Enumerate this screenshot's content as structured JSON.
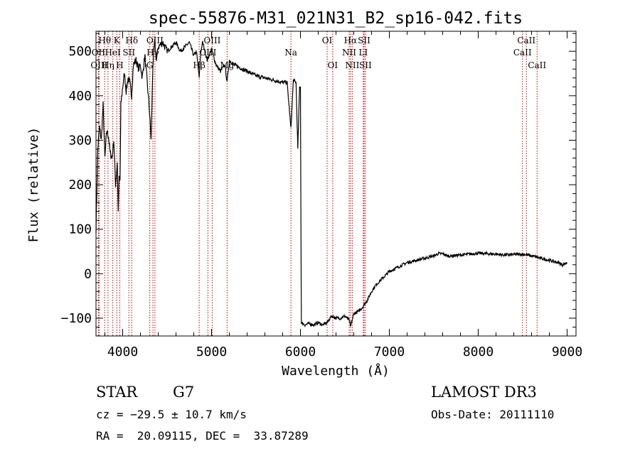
{
  "chart_data": {
    "type": "line",
    "title": "spec-55876-M31_021N31_B2_sp16-042.fits",
    "xlabel": "Wavelength (Å)",
    "ylabel": "Flux (relative)",
    "xlim": [
      3700,
      9100
    ],
    "ylim": [
      -140,
      545
    ],
    "xticks": [
      4000,
      5000,
      6000,
      7000,
      8000,
      9000
    ],
    "yticks": [
      -100,
      0,
      100,
      200,
      300,
      400,
      500
    ],
    "spectrum": {
      "x": [
        3700,
        3720,
        3740,
        3760,
        3780,
        3800,
        3820,
        3840,
        3860,
        3880,
        3900,
        3920,
        3940,
        3950,
        3960,
        3970,
        3980,
        4000,
        4020,
        4040,
        4060,
        4080,
        4100,
        4120,
        4150,
        4180,
        4200,
        4220,
        4250,
        4280,
        4300,
        4320,
        4340,
        4360,
        4380,
        4400,
        4450,
        4500,
        4550,
        4600,
        4650,
        4700,
        4750,
        4800,
        4830,
        4861,
        4880,
        4900,
        4950,
        5000,
        5050,
        5100,
        5150,
        5175,
        5200,
        5250,
        5300,
        5400,
        5500,
        5600,
        5700,
        5800,
        5850,
        5893,
        5920,
        5950,
        5970,
        5990,
        6000,
        6010,
        6050,
        6100,
        6150,
        6200,
        6250,
        6300,
        6350,
        6400,
        6450,
        6500,
        6550,
        6563,
        6600,
        6650,
        6700,
        6750,
        6800,
        6850,
        6900,
        6950,
        7000,
        7100,
        7200,
        7300,
        7400,
        7500,
        7550,
        7600,
        7650,
        7700,
        7800,
        7900,
        8000,
        8100,
        8200,
        8300,
        8400,
        8500,
        8600,
        8700,
        8800,
        8900,
        8950,
        9000
      ],
      "y": [
        100,
        280,
        330,
        300,
        380,
        260,
        320,
        310,
        270,
        260,
        300,
        200,
        250,
        140,
        220,
        210,
        380,
        420,
        450,
        410,
        440,
        430,
        400,
        470,
        480,
        460,
        470,
        440,
        490,
        420,
        370,
        300,
        470,
        520,
        480,
        510,
        520,
        500,
        510,
        520,
        500,
        510,
        520,
        490,
        500,
        440,
        500,
        520,
        480,
        505,
        470,
        455,
        470,
        430,
        480,
        470,
        465,
        455,
        445,
        440,
        435,
        430,
        430,
        325,
        435,
        430,
        280,
        420,
        420,
        -110,
        -115,
        -112,
        -115,
        -110,
        -115,
        -110,
        -95,
        -100,
        -100,
        -95,
        -105,
        -120,
        -90,
        -85,
        -75,
        -60,
        -40,
        -25,
        -15,
        -5,
        5,
        15,
        25,
        30,
        35,
        40,
        45,
        45,
        40,
        40,
        42,
        44,
        46,
        45,
        44,
        42,
        43,
        44,
        40,
        35,
        30,
        25,
        20,
        25
      ]
    },
    "lines": [
      {
        "label": "Hθ",
        "wl": 3798,
        "row": 0
      },
      {
        "label": "OII",
        "wl": 3727,
        "row": 1
      },
      {
        "label": "OIII",
        "wl": 3735,
        "row": 2
      },
      {
        "label": "K",
        "wl": 3934,
        "row": 0
      },
      {
        "label": "HeI",
        "wl": 3889,
        "row": 1
      },
      {
        "label": "SII",
        "wl": 4070,
        "row": 1
      },
      {
        "label": "Hη",
        "wl": 3835,
        "row": 2
      },
      {
        "label": "H",
        "wl": 3968,
        "row": 2
      },
      {
        "label": "Hδ",
        "wl": 4102,
        "row": 0
      },
      {
        "label": "OIII",
        "wl": 4363,
        "row": 0
      },
      {
        "label": "Hγ",
        "wl": 4340,
        "row": 1
      },
      {
        "label": "G",
        "wl": 4305,
        "row": 2
      },
      {
        "label": "OIII",
        "wl": 5007,
        "row": 0
      },
      {
        "label": "OIII",
        "wl": 4959,
        "row": 1
      },
      {
        "label": "Hβ",
        "wl": 4861,
        "row": 2
      },
      {
        "label": "Mg",
        "wl": 5175,
        "row": 2
      },
      {
        "label": "Na",
        "wl": 5893,
        "row": 1
      },
      {
        "label": "OI",
        "wl": 6300,
        "row": 0
      },
      {
        "label": "OI",
        "wl": 6363,
        "row": 2
      },
      {
        "label": "Hα",
        "wl": 6563,
        "row": 0
      },
      {
        "label": "NII",
        "wl": 6548,
        "row": 1
      },
      {
        "label": "NII",
        "wl": 6583,
        "row": 2
      },
      {
        "label": "SII",
        "wl": 6716,
        "row": 0
      },
      {
        "label": "LI",
        "wl": 6707,
        "row": 1
      },
      {
        "label": "SII",
        "wl": 6731,
        "row": 2
      },
      {
        "label": "CaII",
        "wl": 8542,
        "row": 0
      },
      {
        "label": "CaII",
        "wl": 8498,
        "row": 1
      },
      {
        "label": "CaII",
        "wl": 8662,
        "row": 2
      }
    ]
  },
  "footer": {
    "object_class": "STAR",
    "subclass": "G7",
    "survey": "LAMOST DR3",
    "cz": "cz = −29.5 ± 10.7 km/s",
    "obs_date": "Obs-Date: 20111110",
    "radec": "RA =  20.09115, DEC =  33.87289"
  }
}
